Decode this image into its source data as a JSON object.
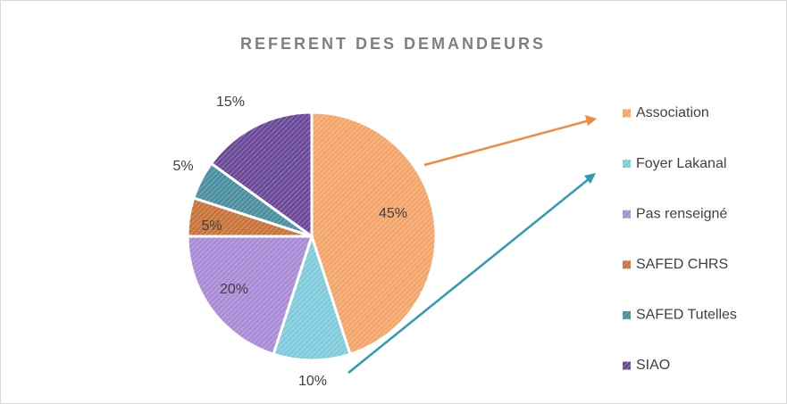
{
  "chart_data": {
    "type": "pie",
    "title": "REFERENT DES DEMANDEURS",
    "categories": [
      "Association",
      "Foyer Lakanal",
      "Pas renseigné",
      "SAFED CHRS",
      "SAFED Tutelles",
      "SIAO"
    ],
    "values": [
      45,
      10,
      20,
      5,
      5,
      15
    ],
    "value_labels": [
      "45%",
      "10%",
      "20%",
      "5%",
      "5%",
      "15%"
    ],
    "colors": [
      "#f4a56a",
      "#7fcbdc",
      "#a98bd6",
      "#c8733a",
      "#4a8fa0",
      "#6a4a98"
    ],
    "legend": "right"
  }
}
